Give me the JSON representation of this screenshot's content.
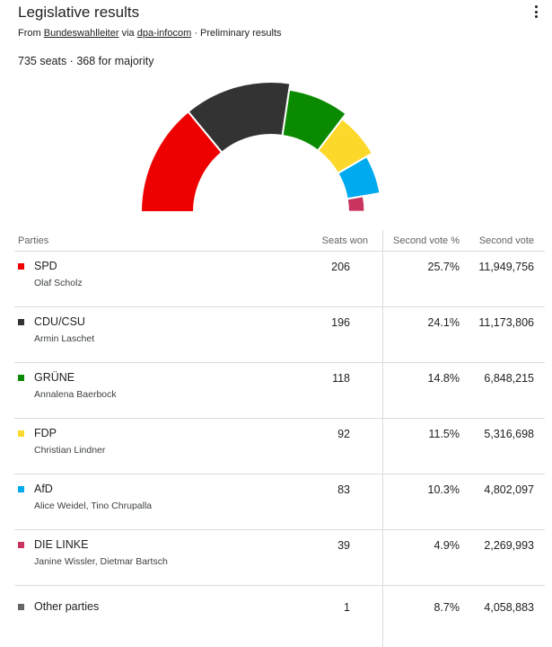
{
  "header": {
    "title": "Legislative results",
    "source_prefix": "From",
    "source1": "Bundeswahlleiter",
    "source_via": "via",
    "source2": "dpa-infocom",
    "source_suffix": "· Preliminary results",
    "seats_summary": "735 seats · 368 for majority",
    "menu_icon": "more-vert-icon"
  },
  "chart_data": {
    "type": "pie",
    "total_seats": 735,
    "majority": 368,
    "categories": [
      "SPD",
      "CDU/CSU",
      "GRÜNE",
      "FDP",
      "AfD",
      "DIE LINKE"
    ],
    "values": [
      206,
      196,
      118,
      92,
      83,
      39
    ],
    "colors": [
      "#ee0000",
      "#333333",
      "#0a8a00",
      "#fcd82a",
      "#00aaee",
      "#c9345e"
    ]
  },
  "table": {
    "headers": {
      "party": "Parties",
      "seats": "Seats won",
      "pct": "Second vote %",
      "votes": "Second vote"
    },
    "rows": [
      {
        "name": "SPD",
        "leader": "Olaf Scholz",
        "seats": "206",
        "pct": "25.7%",
        "votes": "11,949,756",
        "color": "#ee0000"
      },
      {
        "name": "CDU/CSU",
        "leader": "Armin Laschet",
        "seats": "196",
        "pct": "24.1%",
        "votes": "11,173,806",
        "color": "#333333"
      },
      {
        "name": "GRÜNE",
        "leader": "Annalena Baerbock",
        "seats": "118",
        "pct": "14.8%",
        "votes": "6,848,215",
        "color": "#0a8a00"
      },
      {
        "name": "FDP",
        "leader": "Christian Lindner",
        "seats": "92",
        "pct": "11.5%",
        "votes": "5,316,698",
        "color": "#fcd82a"
      },
      {
        "name": "AfD",
        "leader": "Alice Weidel, Tino Chrupalla",
        "seats": "83",
        "pct": "10.3%",
        "votes": "4,802,097",
        "color": "#00aaee"
      },
      {
        "name": "DIE LINKE",
        "leader": "Janine Wissler, Dietmar Bartsch",
        "seats": "39",
        "pct": "4.9%",
        "votes": "2,269,993",
        "color": "#c9345e"
      },
      {
        "name": "Other parties",
        "leader": "",
        "seats": "1",
        "pct": "8.7%",
        "votes": "4,058,883",
        "color": "#666666"
      }
    ]
  }
}
